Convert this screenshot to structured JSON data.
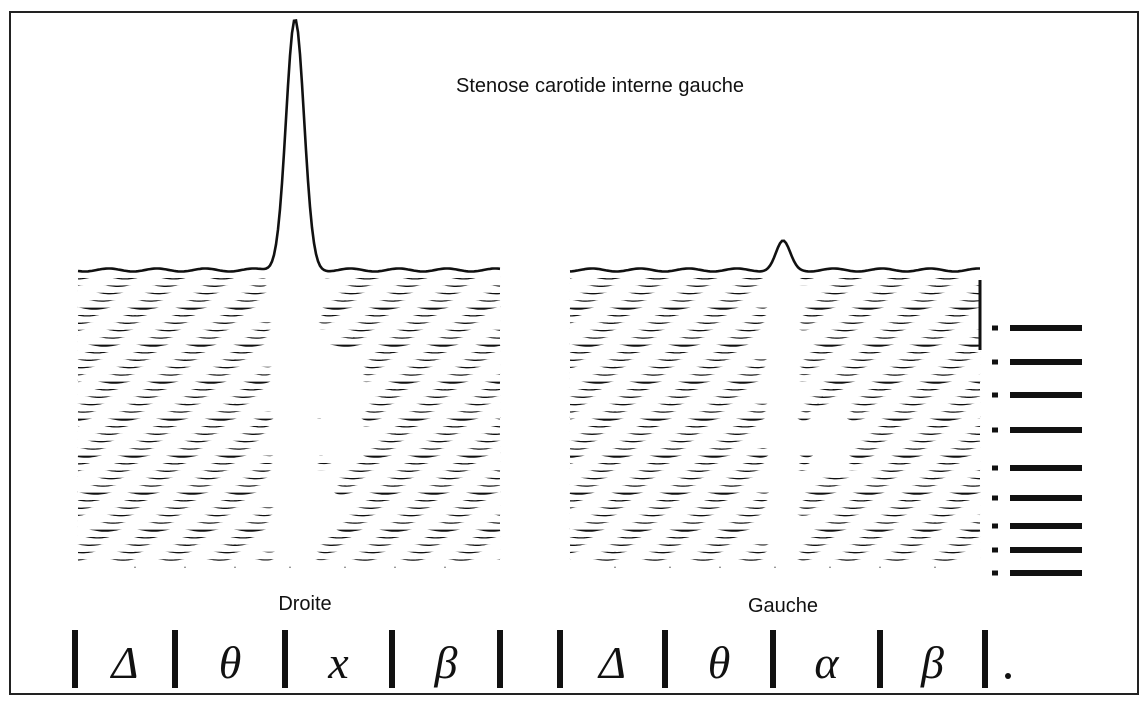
{
  "title": "Stenose carotide interne gauche",
  "panels": [
    {
      "label": "Droite",
      "bands": [
        "Δ",
        "θ",
        "x",
        "β"
      ]
    },
    {
      "label": "Gauche",
      "bands": [
        "Δ",
        "θ",
        "α",
        "β"
      ]
    }
  ]
}
